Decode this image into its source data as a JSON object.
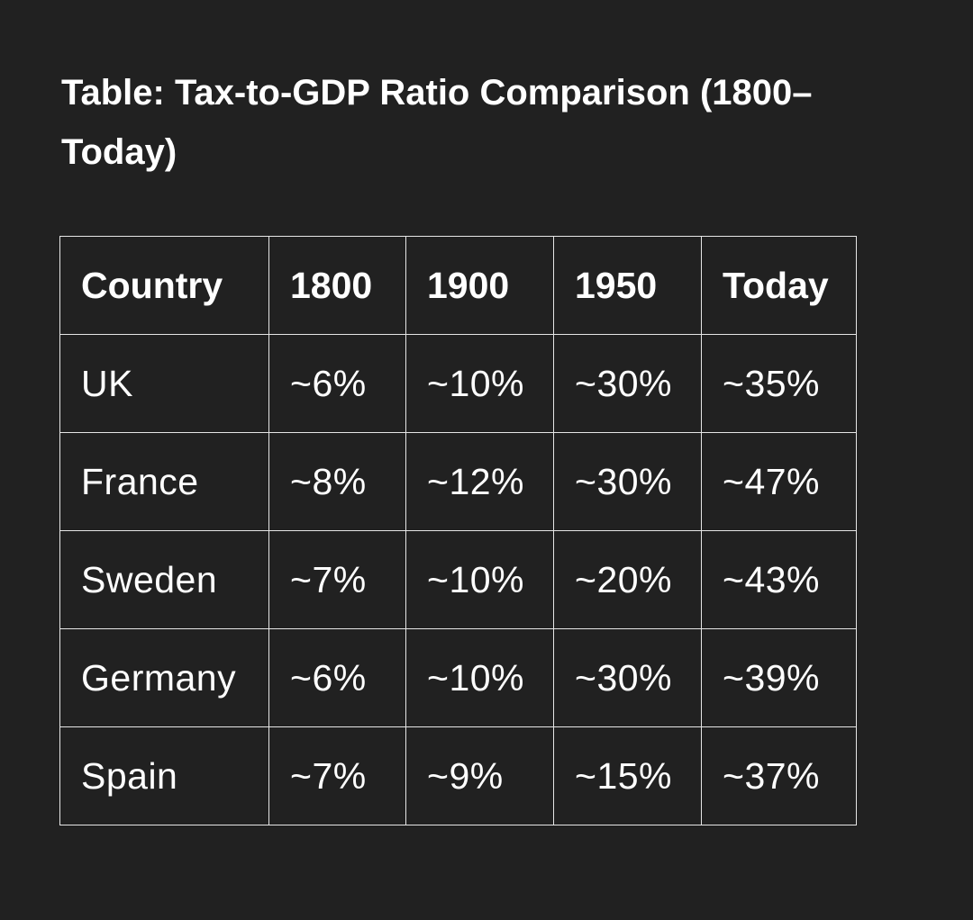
{
  "title": "Table: Tax-to-GDP Ratio Comparison (1800–Today)",
  "table": {
    "headers": [
      "Country",
      "1800",
      "1900",
      "1950",
      "Today"
    ],
    "rows": [
      [
        "UK",
        "~6%",
        "~10%",
        "~30%",
        "~35%"
      ],
      [
        "France",
        "~8%",
        "~12%",
        "~30%",
        "~47%"
      ],
      [
        "Sweden",
        "~7%",
        "~10%",
        "~20%",
        "~43%"
      ],
      [
        "Germany",
        "~6%",
        "~10%",
        "~30%",
        "~39%"
      ],
      [
        "Spain",
        "~7%",
        "~9%",
        "~15%",
        "~37%"
      ]
    ]
  },
  "colors": {
    "background": "#212121",
    "text": "#ffffff",
    "border": "#e6e6e6"
  }
}
